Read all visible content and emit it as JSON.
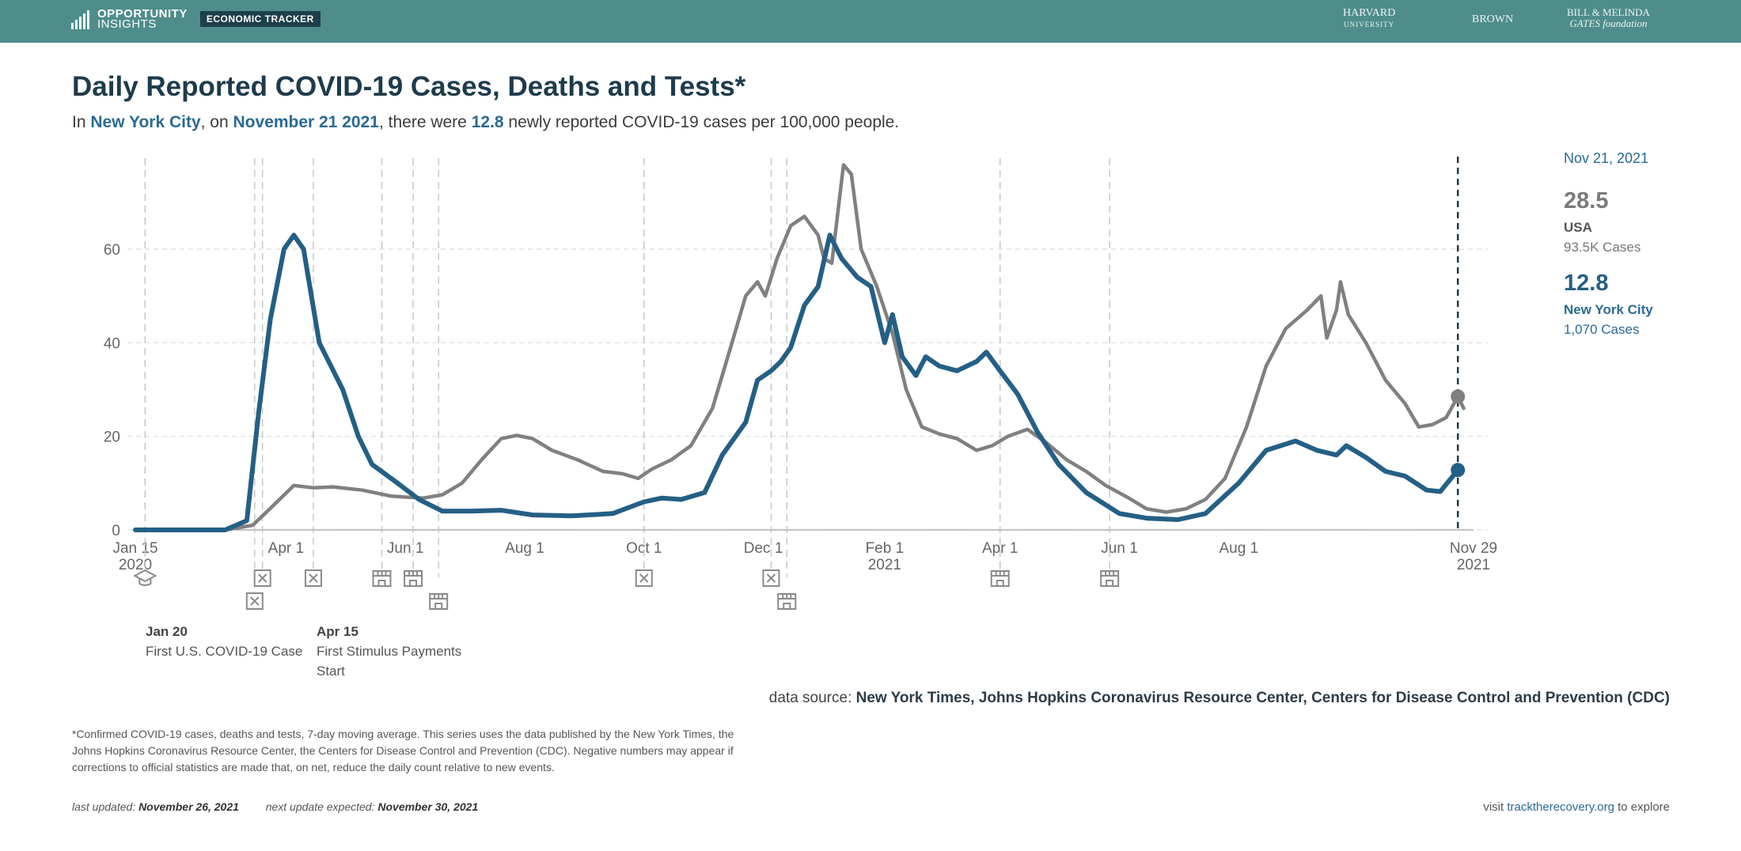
{
  "header": {
    "logo_line1": "OPPORTUNITY",
    "logo_line2": "INSIGHTS",
    "tracker": "ECONOMIC TRACKER",
    "partner1": "HARVARD",
    "partner1_sub": "UNIVERSITY",
    "partner2": "BROWN",
    "partner3_line1": "BILL & MELINDA",
    "partner3_line2": "GATES foundation"
  },
  "title": "Daily Reported COVID-19 Cases, Deaths and Tests*",
  "subtitle": {
    "p1": "In ",
    "place": "New York City",
    "p2": ", on ",
    "date": "November 21 2021",
    "p3": ", there were ",
    "value": "12.8",
    "p4": " newly reported COVID-19 cases per 100,000 people."
  },
  "sidebar": {
    "date": "Nov 21, 2021",
    "usa_value": "28.5",
    "usa_label": "USA",
    "usa_cases": "93.5K Cases",
    "nyc_value": "12.8",
    "nyc_label": "New York City",
    "nyc_cases": "1,070 Cases"
  },
  "events": {
    "e1_date": "Jan 20",
    "e1_text": "First U.S. COVID-19 Case",
    "e2_date": "Apr 15",
    "e2_text1": "First Stimulus Payments",
    "e2_text2": "Start"
  },
  "source": {
    "label": "data source: ",
    "value": "New York Times, Johns Hopkins Coronavirus Resource Center, Centers for Disease Control and Prevention (CDC)"
  },
  "footnote": "*Confirmed COVID-19 cases, deaths and tests, 7-day moving average. This series uses the data published by the New York Times, the Johns Hopkins Coronavirus Resource Center, the Centers for Disease Control and Prevention (CDC). Negative numbers may appear if corrections to official statistics are made that, on net, reduce the daily count relative to new events.",
  "updated": {
    "label1": "last updated: ",
    "date1": "November 26, 2021",
    "label2": "next update expected: ",
    "date2": "November 30, 2021"
  },
  "visit": {
    "pre": "visit ",
    "link": "tracktherecovery.org",
    "post": " to explore"
  },
  "colors": {
    "usa": "#808080",
    "nyc": "#245f85",
    "title": "#1e3b4c"
  },
  "chart_data": {
    "type": "line",
    "ylim": [
      0,
      80
    ],
    "yticks": [
      0,
      20,
      40,
      60
    ],
    "xlim": [
      "2020-01-15",
      "2021-11-29"
    ],
    "xticks": [
      {
        "date": "2020-01-15",
        "label": "Jan 15",
        "label2": "2020"
      },
      {
        "date": "2020-04-01",
        "label": "Apr 1",
        "label2": ""
      },
      {
        "date": "2020-06-01",
        "label": "Jun 1",
        "label2": ""
      },
      {
        "date": "2020-08-01",
        "label": "Aug 1",
        "label2": ""
      },
      {
        "date": "2020-10-01",
        "label": "Oct 1",
        "label2": ""
      },
      {
        "date": "2020-12-01",
        "label": "Dec 1",
        "label2": ""
      },
      {
        "date": "2021-02-01",
        "label": "Feb 1",
        "label2": "2021"
      },
      {
        "date": "2021-04-01",
        "label": "Apr 1",
        "label2": ""
      },
      {
        "date": "2021-06-01",
        "label": "Jun 1",
        "label2": ""
      },
      {
        "date": "2021-08-01",
        "label": "Aug 1",
        "label2": ""
      },
      {
        "date": "2021-11-29",
        "label": "Nov 29",
        "label2": "2021"
      }
    ],
    "grid": true,
    "marker_date": "2021-11-21",
    "series": [
      {
        "name": "USA",
        "color": "#808080",
        "points": [
          [
            "2020-01-15",
            0
          ],
          [
            "2020-03-01",
            0
          ],
          [
            "2020-03-15",
            1
          ],
          [
            "2020-03-25",
            5
          ],
          [
            "2020-04-05",
            9.5
          ],
          [
            "2020-04-15",
            9
          ],
          [
            "2020-04-25",
            9.2
          ],
          [
            "2020-05-10",
            8.5
          ],
          [
            "2020-05-25",
            7.2
          ],
          [
            "2020-06-10",
            6.8
          ],
          [
            "2020-06-20",
            7.5
          ],
          [
            "2020-06-30",
            10
          ],
          [
            "2020-07-10",
            15
          ],
          [
            "2020-07-20",
            19.5
          ],
          [
            "2020-07-28",
            20.2
          ],
          [
            "2020-08-05",
            19.5
          ],
          [
            "2020-08-15",
            17
          ],
          [
            "2020-08-28",
            15
          ],
          [
            "2020-09-10",
            12.5
          ],
          [
            "2020-09-20",
            12
          ],
          [
            "2020-09-28",
            11
          ],
          [
            "2020-10-05",
            13
          ],
          [
            "2020-10-15",
            15
          ],
          [
            "2020-10-25",
            18
          ],
          [
            "2020-11-05",
            26
          ],
          [
            "2020-11-15",
            40
          ],
          [
            "2020-11-22",
            50
          ],
          [
            "2020-11-28",
            53
          ],
          [
            "2020-12-02",
            50
          ],
          [
            "2020-12-08",
            58
          ],
          [
            "2020-12-15",
            65
          ],
          [
            "2020-12-22",
            67
          ],
          [
            "2020-12-29",
            63
          ],
          [
            "2021-01-01",
            58
          ],
          [
            "2021-01-05",
            57
          ],
          [
            "2021-01-11",
            78
          ],
          [
            "2021-01-15",
            76
          ],
          [
            "2021-01-20",
            60
          ],
          [
            "2021-01-28",
            52
          ],
          [
            "2021-02-05",
            42
          ],
          [
            "2021-02-12",
            30
          ],
          [
            "2021-02-20",
            22
          ],
          [
            "2021-03-01",
            20.5
          ],
          [
            "2021-03-10",
            19.5
          ],
          [
            "2021-03-20",
            17
          ],
          [
            "2021-03-28",
            18
          ],
          [
            "2021-04-05",
            20
          ],
          [
            "2021-04-15",
            21.5
          ],
          [
            "2021-04-25",
            18.5
          ],
          [
            "2021-05-05",
            15
          ],
          [
            "2021-05-15",
            12.5
          ],
          [
            "2021-05-25",
            9.5
          ],
          [
            "2021-06-05",
            7
          ],
          [
            "2021-06-15",
            4.5
          ],
          [
            "2021-06-25",
            3.8
          ],
          [
            "2021-07-05",
            4.5
          ],
          [
            "2021-07-15",
            6.5
          ],
          [
            "2021-07-25",
            11
          ],
          [
            "2021-08-05",
            22
          ],
          [
            "2021-08-15",
            35
          ],
          [
            "2021-08-25",
            43
          ],
          [
            "2021-09-05",
            47
          ],
          [
            "2021-09-12",
            50
          ],
          [
            "2021-09-15",
            41
          ],
          [
            "2021-09-20",
            47
          ],
          [
            "2021-09-22",
            53
          ],
          [
            "2021-09-26",
            46
          ],
          [
            "2021-10-05",
            40
          ],
          [
            "2021-10-15",
            32
          ],
          [
            "2021-10-25",
            27
          ],
          [
            "2021-11-01",
            22
          ],
          [
            "2021-11-08",
            22.5
          ],
          [
            "2021-11-15",
            24
          ],
          [
            "2021-11-21",
            28.5
          ],
          [
            "2021-11-24",
            26
          ]
        ]
      },
      {
        "name": "New York City",
        "color": "#245f85",
        "points": [
          [
            "2020-01-15",
            0
          ],
          [
            "2020-03-01",
            0
          ],
          [
            "2020-03-12",
            2
          ],
          [
            "2020-03-18",
            25
          ],
          [
            "2020-03-24",
            45
          ],
          [
            "2020-03-31",
            60
          ],
          [
            "2020-04-05",
            63
          ],
          [
            "2020-04-10",
            60
          ],
          [
            "2020-04-18",
            40
          ],
          [
            "2020-04-30",
            30
          ],
          [
            "2020-05-08",
            20
          ],
          [
            "2020-05-15",
            14
          ],
          [
            "2020-05-28",
            10
          ],
          [
            "2020-06-08",
            6.5
          ],
          [
            "2020-06-20",
            4
          ],
          [
            "2020-07-05",
            4
          ],
          [
            "2020-07-20",
            4.2
          ],
          [
            "2020-08-05",
            3.2
          ],
          [
            "2020-08-25",
            3
          ],
          [
            "2020-09-15",
            3.5
          ],
          [
            "2020-10-01",
            6
          ],
          [
            "2020-10-10",
            6.8
          ],
          [
            "2020-10-20",
            6.5
          ],
          [
            "2020-11-01",
            8
          ],
          [
            "2020-11-10",
            16
          ],
          [
            "2020-11-22",
            23
          ],
          [
            "2020-11-28",
            32
          ],
          [
            "2020-12-05",
            34
          ],
          [
            "2020-12-10",
            36
          ],
          [
            "2020-12-15",
            39
          ],
          [
            "2020-12-22",
            48
          ],
          [
            "2020-12-29",
            52
          ],
          [
            "2021-01-04",
            63
          ],
          [
            "2021-01-10",
            58
          ],
          [
            "2021-01-18",
            54
          ],
          [
            "2021-01-25",
            52
          ],
          [
            "2021-02-01",
            40
          ],
          [
            "2021-02-05",
            46
          ],
          [
            "2021-02-10",
            37
          ],
          [
            "2021-02-17",
            33
          ],
          [
            "2021-02-22",
            37
          ],
          [
            "2021-03-01",
            35
          ],
          [
            "2021-03-10",
            34
          ],
          [
            "2021-03-20",
            36
          ],
          [
            "2021-03-25",
            38
          ],
          [
            "2021-04-01",
            34
          ],
          [
            "2021-04-10",
            29
          ],
          [
            "2021-04-20",
            21
          ],
          [
            "2021-05-01",
            14
          ],
          [
            "2021-05-15",
            8
          ],
          [
            "2021-06-01",
            3.5
          ],
          [
            "2021-06-15",
            2.5
          ],
          [
            "2021-07-01",
            2.2
          ],
          [
            "2021-07-15",
            3.5
          ],
          [
            "2021-08-01",
            10
          ],
          [
            "2021-08-15",
            17
          ],
          [
            "2021-08-30",
            19
          ],
          [
            "2021-09-10",
            17
          ],
          [
            "2021-09-20",
            16
          ],
          [
            "2021-09-25",
            18
          ],
          [
            "2021-10-05",
            15.5
          ],
          [
            "2021-10-15",
            12.5
          ],
          [
            "2021-10-25",
            11.5
          ],
          [
            "2021-11-05",
            8.5
          ],
          [
            "2021-11-12",
            8.2
          ],
          [
            "2021-11-21",
            12.8
          ]
        ]
      }
    ],
    "events": [
      {
        "date": "2020-01-20",
        "icon": "graduation-cap-icon"
      },
      {
        "date": "2020-03-16",
        "icon": "box-x-icon"
      },
      {
        "date": "2020-03-20",
        "icon": "box-x-icon"
      },
      {
        "date": "2020-04-15",
        "icon": "box-x-icon"
      },
      {
        "date": "2020-05-20",
        "icon": "storefront-icon"
      },
      {
        "date": "2020-06-05",
        "icon": "storefront-icon"
      },
      {
        "date": "2020-06-18",
        "icon": "storefront-icon"
      },
      {
        "date": "2020-10-01",
        "icon": "box-x-icon"
      },
      {
        "date": "2020-12-05",
        "icon": "box-x-icon"
      },
      {
        "date": "2020-12-13",
        "icon": "storefront-icon"
      },
      {
        "date": "2021-04-01",
        "icon": "storefront-icon"
      },
      {
        "date": "2021-05-27",
        "icon": "storefront-icon"
      }
    ]
  }
}
